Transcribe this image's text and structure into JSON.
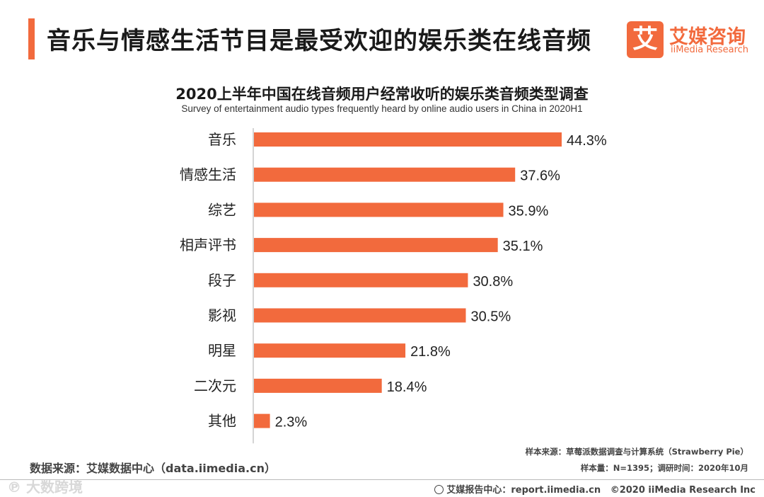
{
  "header": {
    "title": "音乐与情感生活节目是最受欢迎的娱乐类在线音频"
  },
  "logo": {
    "mark": "艾",
    "cn": "艾媒咨询",
    "en": "iiMedia Research"
  },
  "colors": {
    "accent": "#f26a3d",
    "bar": "#f26a3d",
    "axis": "#aaaaaa",
    "text": "#222222"
  },
  "chart_data": {
    "type": "bar",
    "orientation": "horizontal",
    "title": "2020上半年中国在线音频用户经常收听的娱乐类音频类型调查",
    "subtitle": "Survey of entertainment audio types frequently heard by online audio users in China in 2020H1",
    "categories": [
      "音乐",
      "情感生活",
      "综艺",
      "相声评书",
      "段子",
      "影视",
      "明星",
      "二次元",
      "其他"
    ],
    "values": [
      44.3,
      37.6,
      35.9,
      35.1,
      30.8,
      30.5,
      21.8,
      18.4,
      2.3
    ],
    "value_labels": [
      "44.3%",
      "37.6%",
      "35.9%",
      "35.1%",
      "30.8%",
      "30.5%",
      "21.8%",
      "18.4%",
      "2.3%"
    ],
    "unit": "%",
    "xlim": [
      0,
      50
    ],
    "xlabel": "",
    "ylabel": "",
    "grid": false,
    "legend": "none"
  },
  "footer": {
    "source": "数据来源：艾媒数据中心（data.iimedia.cn）",
    "sample_source": "样本来源：草莓派数据调查与计算系统（Strawberry Pie）",
    "sample_info": "样本量：N=1395；调研时间：2020年10月",
    "report_center": "艾媒报告中心：report.iimedia.cn",
    "copyright": "©2020  iiMedia Research  Inc",
    "watermark": "℗ 大数跨境"
  }
}
